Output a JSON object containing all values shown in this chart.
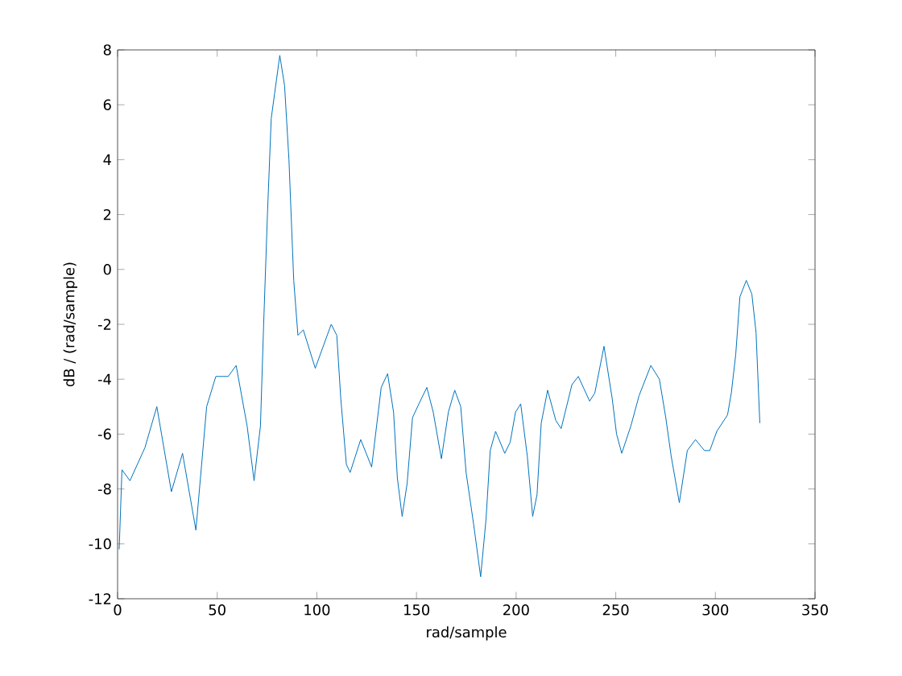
{
  "chart_data": {
    "type": "line",
    "xlabel": "rad/sample",
    "ylabel": "dB / (rad/sample)",
    "x": [
      0.8,
      2.2,
      6.2,
      13.7,
      19.7,
      27,
      32.6,
      39.3,
      44.7,
      49.3,
      55.5,
      59.5,
      65,
      68.5,
      71.7,
      73.3,
      75.2,
      77.1,
      81.4,
      83.8,
      86,
      88.4,
      90.5,
      93.2,
      99.2,
      107.2,
      110,
      112,
      114.8,
      116.7,
      122,
      127.5,
      132.3,
      135.5,
      138.5,
      140.4,
      142.8,
      145.3,
      148,
      151.2,
      155.2,
      158.4,
      162.5,
      166,
      169.2,
      172.2,
      174.9,
      178.7,
      182.2,
      184.9,
      187,
      189.7,
      194.3,
      197,
      199.7,
      202.3,
      205.6,
      208.3,
      210.5,
      212.6,
      215.8,
      219.9,
      222.6,
      228,
      231.2,
      236.9,
      239.5,
      244.1,
      248.2,
      250.4,
      253,
      257.6,
      261.7,
      267.6,
      271.9,
      275.1,
      277.8,
      281.9,
      285.9,
      290,
      294.5,
      297.2,
      300.7,
      306.1,
      308,
      310.2,
      312.3,
      315.5,
      318.3,
      320.4,
      322.3
    ],
    "series": [
      {
        "color": "#0072bd",
        "values": [
          -10.2,
          -7.3,
          -7.7,
          -6.5,
          -5.0,
          -8.1,
          -6.7,
          -9.5,
          -5.0,
          -3.9,
          -3.9,
          -3.5,
          -5.7,
          -7.7,
          -5.7,
          -2.0,
          2.0,
          5.5,
          7.8,
          6.7,
          4.0,
          -0.4,
          -2.4,
          -2.2,
          -3.6,
          -2.0,
          -2.4,
          -4.7,
          -7.1,
          -7.4,
          -6.2,
          -7.2,
          -4.3,
          -3.8,
          -5.2,
          -7.6,
          -9.0,
          -7.8,
          -5.4,
          -4.9,
          -4.3,
          -5.2,
          -6.9,
          -5.2,
          -4.4,
          -5.0,
          -7.4,
          -9.3,
          -11.2,
          -9.1,
          -6.6,
          -5.9,
          -6.7,
          -6.3,
          -5.2,
          -4.9,
          -6.8,
          -9.0,
          -8.2,
          -5.6,
          -4.4,
          -5.5,
          -5.8,
          -4.2,
          -3.9,
          -4.8,
          -4.5,
          -2.8,
          -4.7,
          -6.0,
          -6.7,
          -5.7,
          -4.6,
          -3.5,
          -4.0,
          -5.4,
          -6.8,
          -8.5,
          -6.6,
          -6.2,
          -6.6,
          -6.6,
          -5.9,
          -5.3,
          -4.5,
          -3.1,
          -1.0,
          -0.4,
          -0.9,
          -2.3,
          -5.6
        ]
      }
    ],
    "xlim": [
      0,
      350
    ],
    "ylim": [
      -12,
      8
    ],
    "xticks": [
      0,
      50,
      100,
      150,
      200,
      250,
      300,
      350
    ],
    "yticks": [
      -12,
      -10,
      -8,
      -6,
      -4,
      -2,
      0,
      2,
      4,
      6,
      8
    ],
    "grid": false,
    "marker": "none",
    "line_style": "solid"
  }
}
